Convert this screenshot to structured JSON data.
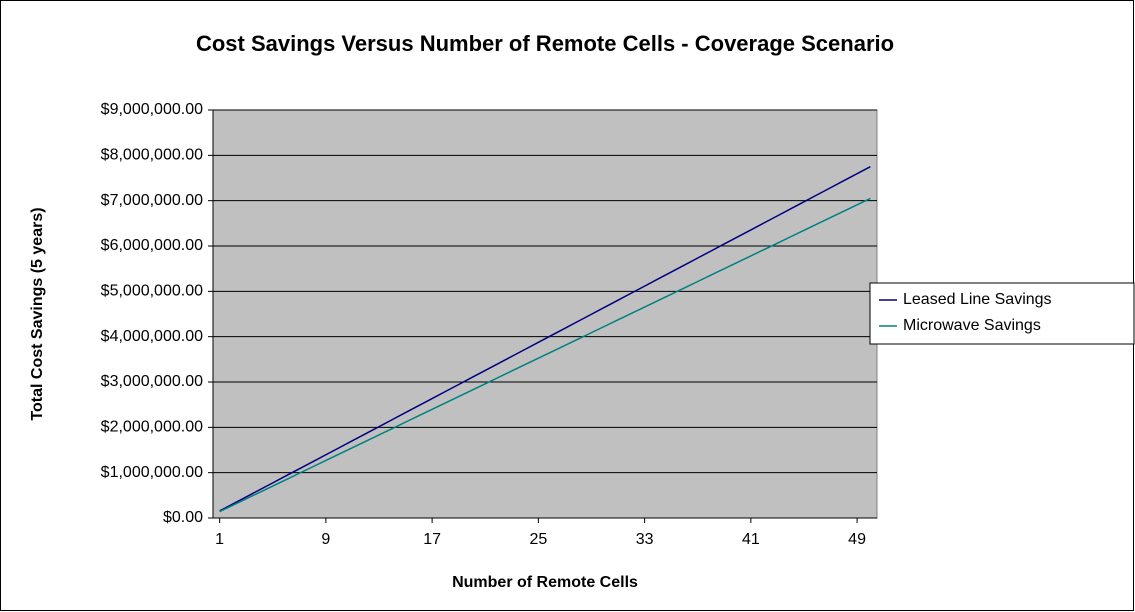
{
  "chart_data": {
    "type": "line",
    "title": "Cost Savings Versus Number of Remote Cells - Coverage Scenario",
    "x_label": "Number of Remote Cells",
    "y_label": "Total Cost Savings (5 years)",
    "x": [
      1,
      2,
      3,
      4,
      5,
      6,
      7,
      8,
      9,
      10,
      11,
      12,
      13,
      14,
      15,
      16,
      17,
      18,
      19,
      20,
      21,
      22,
      23,
      24,
      25,
      26,
      27,
      28,
      29,
      30,
      31,
      32,
      33,
      34,
      35,
      36,
      37,
      38,
      39,
      40,
      41,
      42,
      43,
      44,
      45,
      46,
      47,
      48,
      49,
      50
    ],
    "xlim": [
      0.5,
      50.5
    ],
    "xticks": [
      1,
      9,
      17,
      25,
      33,
      41,
      49
    ],
    "ylim": [
      0,
      9000000
    ],
    "yticks": [
      {
        "value": 0,
        "label": "$0.00"
      },
      {
        "value": 1000000,
        "label": "$1,000,000.00"
      },
      {
        "value": 2000000,
        "label": "$2,000,000.00"
      },
      {
        "value": 3000000,
        "label": "$3,000,000.00"
      },
      {
        "value": 4000000,
        "label": "$4,000,000.00"
      },
      {
        "value": 5000000,
        "label": "$5,000,000.00"
      },
      {
        "value": 6000000,
        "label": "$6,000,000.00"
      },
      {
        "value": 7000000,
        "label": "$7,000,000.00"
      },
      {
        "value": 8000000,
        "label": "$8,000,000.00"
      },
      {
        "value": 9000000,
        "label": "$9,000,000.00"
      }
    ],
    "grid": true,
    "legend": "right",
    "series": [
      {
        "name": "Leased Line Savings",
        "color": "#000080",
        "values": [
          155000,
          310000,
          465000,
          620000,
          775000,
          930000,
          1085000,
          1240000,
          1395000,
          1550000,
          1705000,
          1860000,
          2015000,
          2170000,
          2325000,
          2480000,
          2635000,
          2790000,
          2945000,
          3100000,
          3255000,
          3410000,
          3565000,
          3720000,
          3875000,
          4030000,
          4185000,
          4340000,
          4495000,
          4650000,
          4805000,
          4960000,
          5115000,
          5270000,
          5425000,
          5580000,
          5735000,
          5890000,
          6045000,
          6200000,
          6355000,
          6510000,
          6665000,
          6820000,
          6975000,
          7130000,
          7285000,
          7440000,
          7595000,
          7750000
        ]
      },
      {
        "name": "Microwave Savings",
        "color": "#008080",
        "values": [
          141000,
          282000,
          423000,
          564000,
          705000,
          846000,
          987000,
          1128000,
          1269000,
          1410000,
          1551000,
          1692000,
          1833000,
          1974000,
          2115000,
          2256000,
          2397000,
          2538000,
          2679000,
          2820000,
          2961000,
          3102000,
          3243000,
          3384000,
          3525000,
          3666000,
          3807000,
          3948000,
          4089000,
          4230000,
          4371000,
          4512000,
          4653000,
          4794000,
          4935000,
          5076000,
          5217000,
          5358000,
          5499000,
          5640000,
          5781000,
          5922000,
          6063000,
          6204000,
          6345000,
          6486000,
          6627000,
          6768000,
          6909000,
          7050000
        ]
      }
    ]
  }
}
